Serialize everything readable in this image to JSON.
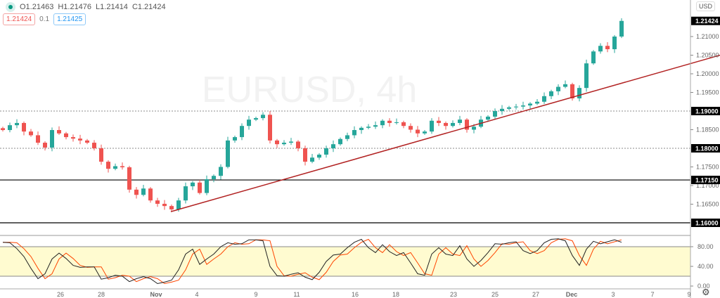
{
  "symbol_watermark": "EURUSD, 4h",
  "legend": {
    "open": "O1.21463",
    "high": "H1.21476",
    "low": "L1.21414",
    "close": "C1.21424"
  },
  "quotes": {
    "bid": "1.21424",
    "spread": "0.1",
    "ask": "1.21425"
  },
  "currency_label": "USD",
  "colors": {
    "up": "#26a69a",
    "down": "#ef5350",
    "trendline": "#b22222",
    "stoch_k": "#000000",
    "stoch_d": "#ff4500",
    "band": "#fffbd0"
  },
  "price_axis": {
    "ticks": [
      "1.21000",
      "1.20500",
      "1.20000",
      "1.19500",
      "1.18500",
      "1.17500",
      "1.17000",
      "1.16500"
    ],
    "tick_values": [
      1.21,
      1.205,
      1.2,
      1.195,
      1.185,
      1.175,
      1.17,
      1.165
    ],
    "current_price": "1.21424",
    "levels": [
      {
        "label": "1.19000",
        "value": 1.19,
        "style": "dotted"
      },
      {
        "label": "1.18000",
        "value": 1.18,
        "style": "dotted"
      },
      {
        "label": "1.17150",
        "value": 1.1715,
        "style": "solid"
      },
      {
        "label": "1.16000",
        "value": 1.16,
        "style": "solid"
      }
    ]
  },
  "stoch_axis": {
    "ticks": [
      "80.00",
      "40.00",
      "0.00"
    ],
    "tick_values": [
      80,
      40,
      0
    ],
    "band": [
      20,
      80
    ]
  },
  "time_axis": [
    "26",
    "28",
    "Nov",
    "4",
    "9",
    "11",
    "16",
    "18",
    "23",
    "25",
    "27",
    "Dec",
    "3",
    "7",
    "9"
  ],
  "chart_data": {
    "type": "candlestick",
    "closes": [
      1.1849,
      1.1862,
      1.1868,
      1.1845,
      1.1835,
      1.1815,
      1.1802,
      1.1849,
      1.184,
      1.183,
      1.1826,
      1.1821,
      1.1815,
      1.18,
      1.1764,
      1.1745,
      1.1752,
      1.1749,
      1.1689,
      1.1675,
      1.1692,
      1.166,
      1.1651,
      1.1645,
      1.1636,
      1.166,
      1.1698,
      1.1708,
      1.168,
      1.1717,
      1.1726,
      1.175,
      1.1821,
      1.183,
      1.186,
      1.1877,
      1.1881,
      1.189,
      1.1821,
      1.1811,
      1.1815,
      1.1818,
      1.18,
      1.1764,
      1.1775,
      1.1783,
      1.18,
      1.1811,
      1.1825,
      1.1835,
      1.1849,
      1.1855,
      1.1858,
      1.1862,
      1.1874,
      1.1868,
      1.187,
      1.186,
      1.185,
      1.184,
      1.1845,
      1.1874,
      1.1868,
      1.186,
      1.1868,
      1.1877,
      1.185,
      1.1858,
      1.1877,
      1.1885,
      1.19,
      1.1906,
      1.191,
      1.1912,
      1.1915,
      1.192,
      1.1925,
      1.194,
      1.1953,
      1.1965,
      1.1972,
      1.1934,
      1.1962,
      1.2028,
      1.206,
      1.2075,
      1.2066,
      1.21,
      1.2142
    ],
    "trendline": {
      "from_price": 1.163,
      "to_price": 1.205
    },
    "stochastic": {
      "k": [
        89,
        88,
        76,
        60,
        36,
        15,
        25,
        55,
        67,
        56,
        42,
        38,
        39,
        39,
        14,
        17,
        22,
        20,
        9,
        15,
        19,
        15,
        5,
        8,
        12,
        33,
        65,
        75,
        44,
        55,
        65,
        80,
        88,
        85,
        86,
        94,
        94,
        92,
        40,
        21,
        20,
        24,
        27,
        18,
        13,
        28,
        50,
        63,
        65,
        78,
        89,
        95,
        78,
        68,
        84,
        70,
        62,
        68,
        47,
        25,
        22,
        65,
        78,
        65,
        62,
        82,
        55,
        40,
        52,
        68,
        86,
        85,
        88,
        90,
        72,
        66,
        72,
        88,
        95,
        96,
        92,
        62,
        42,
        75,
        91,
        86,
        90,
        94,
        89
      ],
      "d": [
        89,
        89,
        88,
        76,
        60,
        36,
        15,
        25,
        55,
        67,
        56,
        42,
        38,
        39,
        39,
        14,
        17,
        22,
        20,
        9,
        15,
        19,
        15,
        5,
        8,
        12,
        33,
        65,
        75,
        44,
        55,
        65,
        80,
        88,
        85,
        86,
        94,
        94,
        92,
        40,
        21,
        20,
        24,
        27,
        18,
        13,
        28,
        50,
        63,
        65,
        78,
        89,
        95,
        78,
        68,
        84,
        70,
        62,
        68,
        47,
        25,
        22,
        65,
        78,
        65,
        62,
        82,
        55,
        40,
        52,
        68,
        86,
        85,
        88,
        90,
        72,
        66,
        72,
        88,
        95,
        96,
        92,
        62,
        42,
        75,
        91,
        86,
        90,
        94
      ]
    }
  }
}
